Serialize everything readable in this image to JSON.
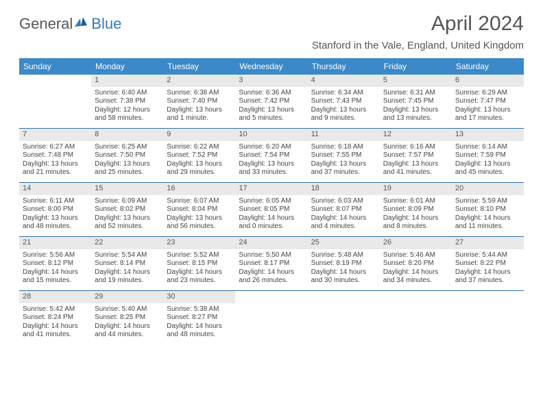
{
  "brand": {
    "part1": "General",
    "part2": "Blue"
  },
  "title": "April 2024",
  "location": "Stanford in the Vale, England, United Kingdom",
  "colors": {
    "header_bg": "#3b89c9",
    "header_text": "#ffffff",
    "daynum_bg": "#e9e9e9",
    "rule": "#2f6fa6",
    "text": "#444444",
    "title_text": "#555555"
  },
  "day_names": [
    "Sunday",
    "Monday",
    "Tuesday",
    "Wednesday",
    "Thursday",
    "Friday",
    "Saturday"
  ],
  "weeks": [
    [
      null,
      {
        "n": "1",
        "sr": "Sunrise: 6:40 AM",
        "ss": "Sunset: 7:38 PM",
        "d1": "Daylight: 12 hours",
        "d2": "and 58 minutes."
      },
      {
        "n": "2",
        "sr": "Sunrise: 6:38 AM",
        "ss": "Sunset: 7:40 PM",
        "d1": "Daylight: 13 hours",
        "d2": "and 1 minute."
      },
      {
        "n": "3",
        "sr": "Sunrise: 6:36 AM",
        "ss": "Sunset: 7:42 PM",
        "d1": "Daylight: 13 hours",
        "d2": "and 5 minutes."
      },
      {
        "n": "4",
        "sr": "Sunrise: 6:34 AM",
        "ss": "Sunset: 7:43 PM",
        "d1": "Daylight: 13 hours",
        "d2": "and 9 minutes."
      },
      {
        "n": "5",
        "sr": "Sunrise: 6:31 AM",
        "ss": "Sunset: 7:45 PM",
        "d1": "Daylight: 13 hours",
        "d2": "and 13 minutes."
      },
      {
        "n": "6",
        "sr": "Sunrise: 6:29 AM",
        "ss": "Sunset: 7:47 PM",
        "d1": "Daylight: 13 hours",
        "d2": "and 17 minutes."
      }
    ],
    [
      {
        "n": "7",
        "sr": "Sunrise: 6:27 AM",
        "ss": "Sunset: 7:48 PM",
        "d1": "Daylight: 13 hours",
        "d2": "and 21 minutes."
      },
      {
        "n": "8",
        "sr": "Sunrise: 6:25 AM",
        "ss": "Sunset: 7:50 PM",
        "d1": "Daylight: 13 hours",
        "d2": "and 25 minutes."
      },
      {
        "n": "9",
        "sr": "Sunrise: 6:22 AM",
        "ss": "Sunset: 7:52 PM",
        "d1": "Daylight: 13 hours",
        "d2": "and 29 minutes."
      },
      {
        "n": "10",
        "sr": "Sunrise: 6:20 AM",
        "ss": "Sunset: 7:54 PM",
        "d1": "Daylight: 13 hours",
        "d2": "and 33 minutes."
      },
      {
        "n": "11",
        "sr": "Sunrise: 6:18 AM",
        "ss": "Sunset: 7:55 PM",
        "d1": "Daylight: 13 hours",
        "d2": "and 37 minutes."
      },
      {
        "n": "12",
        "sr": "Sunrise: 6:16 AM",
        "ss": "Sunset: 7:57 PM",
        "d1": "Daylight: 13 hours",
        "d2": "and 41 minutes."
      },
      {
        "n": "13",
        "sr": "Sunrise: 6:14 AM",
        "ss": "Sunset: 7:59 PM",
        "d1": "Daylight: 13 hours",
        "d2": "and 45 minutes."
      }
    ],
    [
      {
        "n": "14",
        "sr": "Sunrise: 6:11 AM",
        "ss": "Sunset: 8:00 PM",
        "d1": "Daylight: 13 hours",
        "d2": "and 48 minutes."
      },
      {
        "n": "15",
        "sr": "Sunrise: 6:09 AM",
        "ss": "Sunset: 8:02 PM",
        "d1": "Daylight: 13 hours",
        "d2": "and 52 minutes."
      },
      {
        "n": "16",
        "sr": "Sunrise: 6:07 AM",
        "ss": "Sunset: 8:04 PM",
        "d1": "Daylight: 13 hours",
        "d2": "and 56 minutes."
      },
      {
        "n": "17",
        "sr": "Sunrise: 6:05 AM",
        "ss": "Sunset: 8:05 PM",
        "d1": "Daylight: 14 hours",
        "d2": "and 0 minutes."
      },
      {
        "n": "18",
        "sr": "Sunrise: 6:03 AM",
        "ss": "Sunset: 8:07 PM",
        "d1": "Daylight: 14 hours",
        "d2": "and 4 minutes."
      },
      {
        "n": "19",
        "sr": "Sunrise: 6:01 AM",
        "ss": "Sunset: 8:09 PM",
        "d1": "Daylight: 14 hours",
        "d2": "and 8 minutes."
      },
      {
        "n": "20",
        "sr": "Sunrise: 5:59 AM",
        "ss": "Sunset: 8:10 PM",
        "d1": "Daylight: 14 hours",
        "d2": "and 11 minutes."
      }
    ],
    [
      {
        "n": "21",
        "sr": "Sunrise: 5:56 AM",
        "ss": "Sunset: 8:12 PM",
        "d1": "Daylight: 14 hours",
        "d2": "and 15 minutes."
      },
      {
        "n": "22",
        "sr": "Sunrise: 5:54 AM",
        "ss": "Sunset: 8:14 PM",
        "d1": "Daylight: 14 hours",
        "d2": "and 19 minutes."
      },
      {
        "n": "23",
        "sr": "Sunrise: 5:52 AM",
        "ss": "Sunset: 8:15 PM",
        "d1": "Daylight: 14 hours",
        "d2": "and 23 minutes."
      },
      {
        "n": "24",
        "sr": "Sunrise: 5:50 AM",
        "ss": "Sunset: 8:17 PM",
        "d1": "Daylight: 14 hours",
        "d2": "and 26 minutes."
      },
      {
        "n": "25",
        "sr": "Sunrise: 5:48 AM",
        "ss": "Sunset: 8:19 PM",
        "d1": "Daylight: 14 hours",
        "d2": "and 30 minutes."
      },
      {
        "n": "26",
        "sr": "Sunrise: 5:46 AM",
        "ss": "Sunset: 8:20 PM",
        "d1": "Daylight: 14 hours",
        "d2": "and 34 minutes."
      },
      {
        "n": "27",
        "sr": "Sunrise: 5:44 AM",
        "ss": "Sunset: 8:22 PM",
        "d1": "Daylight: 14 hours",
        "d2": "and 37 minutes."
      }
    ],
    [
      {
        "n": "28",
        "sr": "Sunrise: 5:42 AM",
        "ss": "Sunset: 8:24 PM",
        "d1": "Daylight: 14 hours",
        "d2": "and 41 minutes."
      },
      {
        "n": "29",
        "sr": "Sunrise: 5:40 AM",
        "ss": "Sunset: 8:25 PM",
        "d1": "Daylight: 14 hours",
        "d2": "and 44 minutes."
      },
      {
        "n": "30",
        "sr": "Sunrise: 5:38 AM",
        "ss": "Sunset: 8:27 PM",
        "d1": "Daylight: 14 hours",
        "d2": "and 48 minutes."
      },
      null,
      null,
      null,
      null
    ]
  ]
}
